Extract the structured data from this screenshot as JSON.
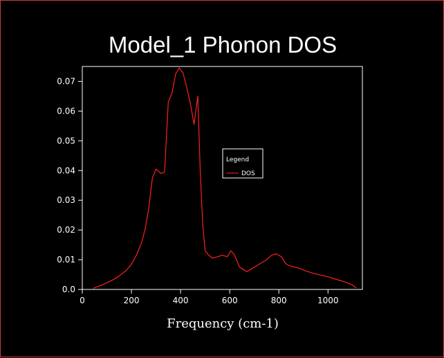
{
  "chart_data": {
    "type": "line",
    "title": "Model_1 Phonon DOS",
    "xlabel": "Frequency (cm-1)",
    "ylabel": "",
    "xlim": [
      0,
      1140
    ],
    "ylim": [
      0,
      0.075
    ],
    "xticks": [
      0,
      200,
      400,
      600,
      800,
      1000
    ],
    "xtick_labels": [
      "0",
      "200",
      "400",
      "600",
      "800",
      "1000"
    ],
    "yticks": [
      0,
      0.01,
      0.02,
      0.03,
      0.04,
      0.05,
      0.06,
      0.07
    ],
    "ytick_labels": [
      "0.0",
      "0.01",
      "0.02",
      "0.03",
      "0.04",
      "0.05",
      "0.06",
      "0.07"
    ],
    "grid": false,
    "legend": {
      "title": "Legend",
      "position": "center-right"
    },
    "series": [
      {
        "name": "DOS",
        "color": "#ff2020",
        "x": [
          45,
          80,
          120,
          150,
          180,
          200,
          220,
          240,
          255,
          270,
          285,
          300,
          320,
          335,
          350,
          365,
          380,
          395,
          410,
          425,
          440,
          455,
          470,
          480,
          490,
          500,
          515,
          530,
          550,
          570,
          590,
          605,
          620,
          640,
          670,
          700,
          730,
          750,
          770,
          790,
          810,
          830,
          850,
          880,
          910,
          950,
          990,
          1030,
          1070,
          1100,
          1115
        ],
        "y": [
          0.0004,
          0.0015,
          0.003,
          0.0045,
          0.0065,
          0.0085,
          0.0115,
          0.0155,
          0.02,
          0.027,
          0.0375,
          0.0405,
          0.039,
          0.0395,
          0.063,
          0.066,
          0.0725,
          0.0745,
          0.0728,
          0.068,
          0.0625,
          0.0555,
          0.065,
          0.04,
          0.022,
          0.013,
          0.0115,
          0.0105,
          0.011,
          0.0115,
          0.011,
          0.013,
          0.0115,
          0.0075,
          0.006,
          0.0075,
          0.009,
          0.01,
          0.0115,
          0.012,
          0.011,
          0.0085,
          0.0078,
          0.0072,
          0.0062,
          0.0052,
          0.0045,
          0.0035,
          0.0025,
          0.0015,
          0.0005
        ]
      }
    ]
  }
}
